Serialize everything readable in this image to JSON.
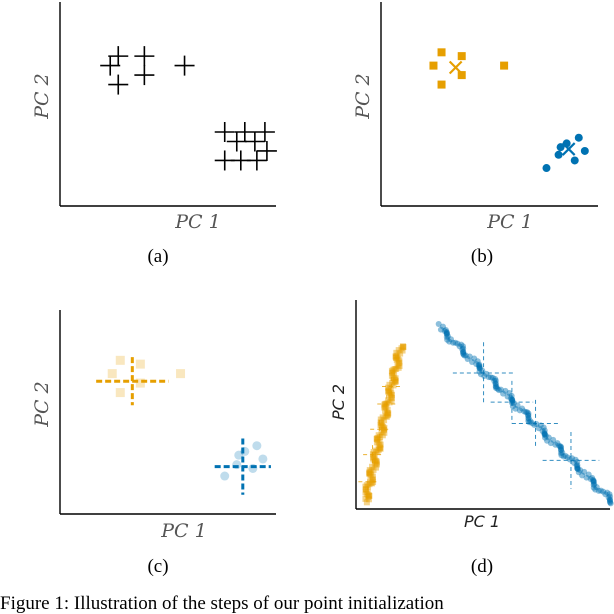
{
  "caption": "Figure 1: Illustration of the steps of our point initialization",
  "colors": {
    "orange": "#E69F00",
    "blue": "#0072B2",
    "black": "#000000"
  },
  "chart_data": [
    {
      "type": "scatter",
      "panel": "(a)",
      "xlabel": "PC 1",
      "ylabel": "PC 2",
      "xlim": [
        0,
        10
      ],
      "ylim": [
        0,
        10
      ],
      "marker": "plus",
      "series": [
        {
          "color": "#000000",
          "points": [
            [
              2.5,
              7.4
            ],
            [
              2.9,
              7.9
            ],
            [
              2.9,
              6.4
            ],
            [
              4.2,
              7.9
            ],
            [
              4.2,
              6.9
            ],
            [
              6.2,
              7.4
            ]
          ]
        },
        {
          "color": "#000000",
          "points": [
            [
              8.2,
              3.9
            ],
            [
              8.8,
              3.4
            ],
            [
              9.2,
              3.9
            ],
            [
              9.7,
              3.4
            ],
            [
              10.2,
              3.9
            ],
            [
              8.2,
              2.4
            ],
            [
              9.0,
              2.4
            ],
            [
              9.8,
              2.4
            ],
            [
              10.3,
              2.9
            ]
          ]
        }
      ]
    },
    {
      "type": "scatter",
      "panel": "(b)",
      "xlabel": "PC 1",
      "ylabel": "PC 2",
      "xlim": [
        0,
        10
      ],
      "ylim": [
        0,
        10
      ],
      "series": [
        {
          "color": "#E69F00",
          "marker": "square",
          "points": [
            [
              2.6,
              7.4
            ],
            [
              3.0,
              8.1
            ],
            [
              3.0,
              6.4
            ],
            [
              4.0,
              7.9
            ],
            [
              4.0,
              6.9
            ],
            [
              6.1,
              7.4
            ]
          ],
          "centroid": [
            3.7,
            7.3
          ]
        },
        {
          "color": "#0072B2",
          "marker": "circle",
          "points": [
            [
              8.2,
              2.0
            ],
            [
              8.8,
              2.7
            ],
            [
              9.2,
              3.3
            ],
            [
              9.8,
              3.6
            ],
            [
              10.1,
              2.9
            ],
            [
              9.6,
              2.4
            ],
            [
              8.9,
              3.1
            ]
          ],
          "centroid": [
            9.3,
            3.0
          ]
        }
      ]
    },
    {
      "type": "scatter",
      "panel": "(c)",
      "xlabel": "PC 1",
      "ylabel": "PC 2",
      "xlim": [
        0,
        10
      ],
      "ylim": [
        0,
        10
      ],
      "series": [
        {
          "color": "#E69F00",
          "marker": "square",
          "faded": true,
          "points": [
            [
              2.6,
              7.4
            ],
            [
              3.0,
              8.1
            ],
            [
              3.0,
              6.4
            ],
            [
              4.0,
              7.9
            ],
            [
              4.0,
              6.9
            ],
            [
              6.0,
              7.4
            ]
          ],
          "centroid": [
            3.6,
            7.0
          ],
          "spread_x": 1.8,
          "spread_y": 1.2
        },
        {
          "color": "#0072B2",
          "marker": "circle",
          "faded": true,
          "points": [
            [
              8.2,
              2.0
            ],
            [
              8.8,
              2.6
            ],
            [
              9.2,
              3.3
            ],
            [
              9.8,
              3.6
            ],
            [
              10.1,
              2.9
            ],
            [
              9.6,
              2.4
            ],
            [
              8.9,
              3.1
            ]
          ],
          "centroid": [
            9.1,
            2.5
          ],
          "spread_x": 1.4,
          "spread_y": 1.4
        }
      ]
    },
    {
      "type": "scatter",
      "panel": "(d)",
      "xlabel": "PC 1",
      "ylabel": "PC 2",
      "xlim": [
        0,
        10
      ],
      "ylim": [
        0,
        10
      ],
      "series": [
        {
          "color": "#E69F00",
          "marker": "square",
          "band_from": [
            0.4,
            0.4
          ],
          "band_to": [
            1.9,
            8.4
          ],
          "band_count": 140,
          "crosses": [
            [
              0.5,
              1.4,
              0.4
            ],
            [
              0.7,
              2.8,
              0.4
            ],
            [
              1.0,
              4.1,
              0.4
            ],
            [
              1.3,
              5.4,
              0.4
            ],
            [
              1.5,
              6.3,
              0.4
            ]
          ]
        },
        {
          "color": "#0072B2",
          "marker": "circle",
          "band_from": [
            3.5,
            9.4
          ],
          "band_to": [
            10.9,
            0.3
          ],
          "band_count": 160,
          "crosses": [
            [
              5.4,
              7.0,
              1.3
            ],
            [
              6.6,
              5.5,
              0.9
            ],
            [
              7.6,
              4.4,
              1.0
            ],
            [
              9.1,
              2.5,
              1.2
            ]
          ]
        }
      ]
    }
  ]
}
